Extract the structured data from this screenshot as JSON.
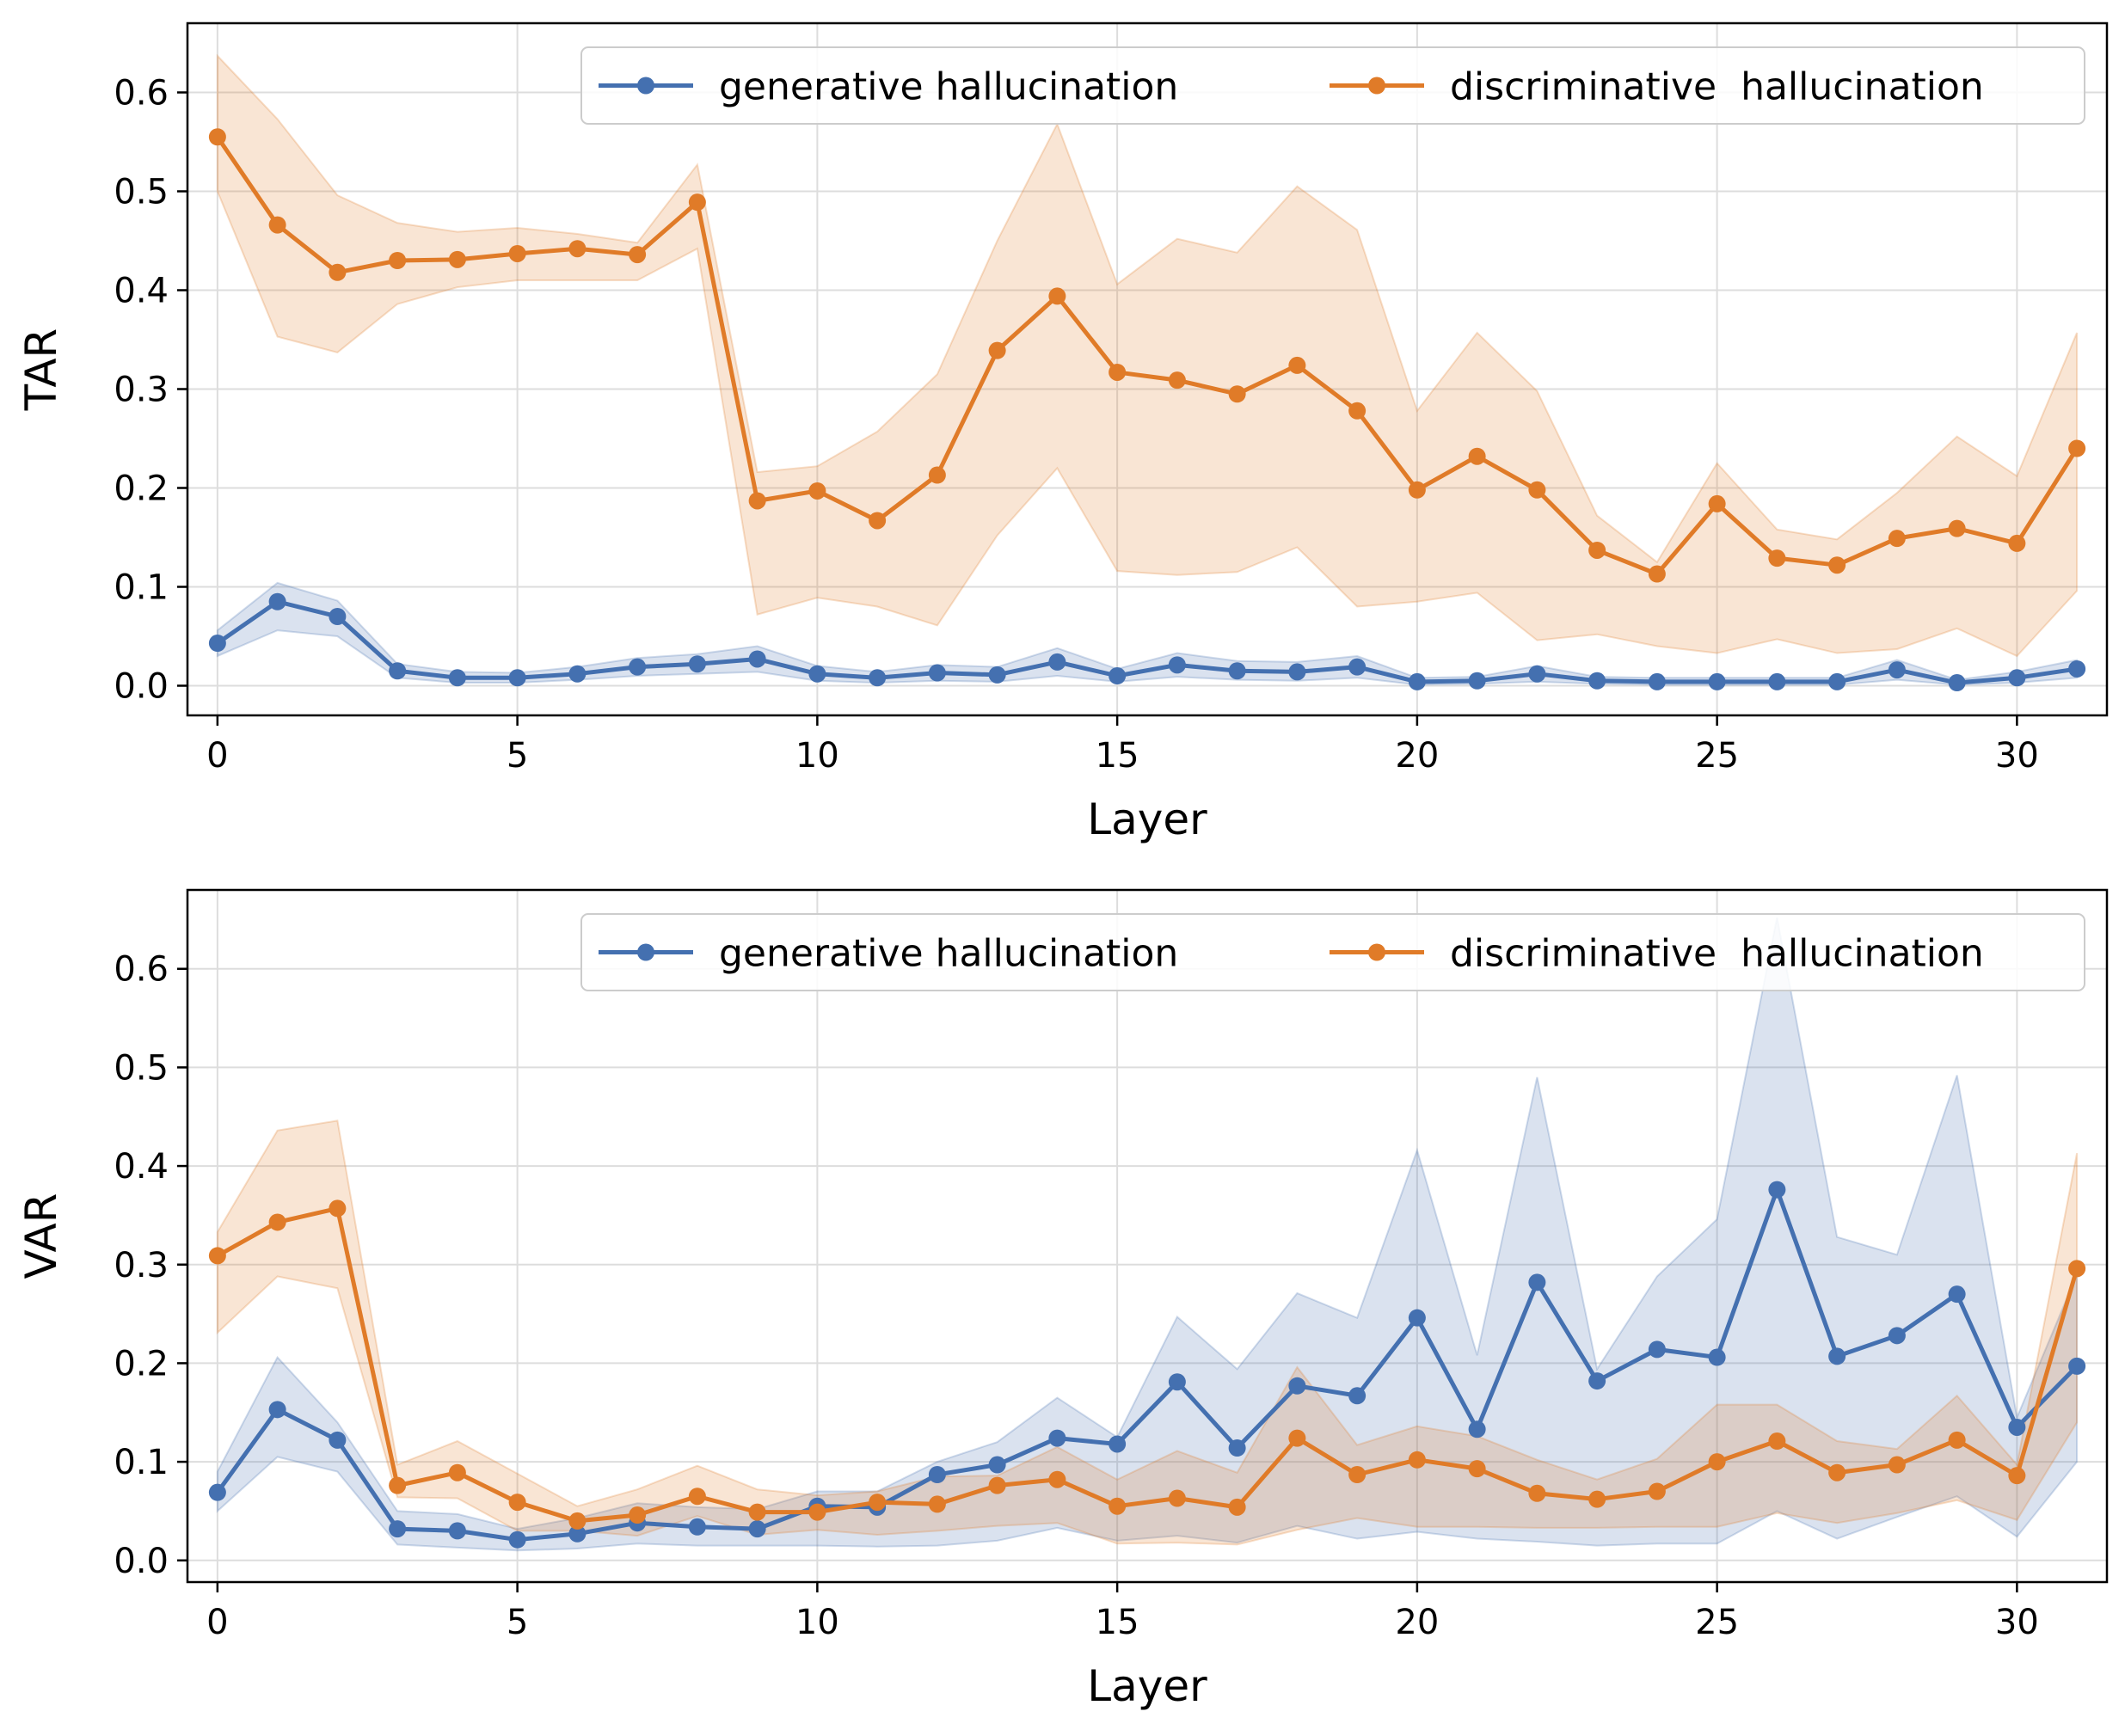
{
  "chart_data": [
    {
      "type": "line",
      "xlabel": "Layer",
      "ylabel": "TAR",
      "xlim": [
        -0.5,
        31.5
      ],
      "ylim": [
        -0.03,
        0.67
      ],
      "xticks": [
        0,
        5,
        10,
        15,
        20,
        25,
        30
      ],
      "yticks": [
        0.0,
        0.1,
        0.2,
        0.3,
        0.4,
        0.5,
        0.6
      ],
      "grid": true,
      "legend_position": "top-right",
      "x": [
        0,
        1,
        2,
        3,
        4,
        5,
        6,
        7,
        8,
        9,
        10,
        11,
        12,
        13,
        14,
        15,
        16,
        17,
        18,
        19,
        20,
        21,
        22,
        23,
        24,
        25,
        26,
        27,
        28,
        29,
        30,
        31
      ],
      "series": [
        {
          "name": "generative hallucination",
          "color": "#4470b0",
          "values": [
            0.043,
            0.085,
            0.07,
            0.015,
            0.008,
            0.008,
            0.012,
            0.019,
            0.022,
            0.027,
            0.012,
            0.008,
            0.013,
            0.011,
            0.024,
            0.01,
            0.021,
            0.015,
            0.014,
            0.019,
            0.004,
            0.005,
            0.012,
            0.005,
            0.004,
            0.004,
            0.004,
            0.004,
            0.016,
            0.003,
            0.008,
            0.017
          ],
          "lower": [
            0.03,
            0.056,
            0.05,
            0.008,
            0.003,
            0.003,
            0.006,
            0.01,
            0.012,
            0.014,
            0.005,
            0.003,
            0.005,
            0.004,
            0.01,
            0.004,
            0.009,
            0.006,
            0.005,
            0.008,
            0.001,
            0.002,
            0.004,
            0.002,
            0.001,
            0.001,
            0.001,
            0.001,
            0.006,
            0.001,
            0.003,
            0.008
          ],
          "upper": [
            0.056,
            0.104,
            0.086,
            0.022,
            0.014,
            0.013,
            0.019,
            0.028,
            0.032,
            0.04,
            0.02,
            0.014,
            0.021,
            0.019,
            0.038,
            0.017,
            0.033,
            0.025,
            0.024,
            0.03,
            0.008,
            0.009,
            0.02,
            0.009,
            0.008,
            0.008,
            0.008,
            0.008,
            0.026,
            0.006,
            0.014,
            0.026
          ]
        },
        {
          "name": "discriminative  hallucination",
          "color": "#e07b28",
          "values": [
            0.555,
            0.466,
            0.418,
            0.43,
            0.431,
            0.437,
            0.442,
            0.436,
            0.489,
            0.187,
            0.197,
            0.167,
            0.213,
            0.339,
            0.394,
            0.317,
            0.309,
            0.295,
            0.324,
            0.278,
            0.198,
            0.232,
            0.198,
            0.137,
            0.113,
            0.184,
            0.129,
            0.122,
            0.149,
            0.159,
            0.144,
            0.24
          ],
          "lower": [
            0.5,
            0.353,
            0.337,
            0.386,
            0.403,
            0.41,
            0.41,
            0.41,
            0.442,
            0.072,
            0.089,
            0.08,
            0.061,
            0.152,
            0.22,
            0.116,
            0.112,
            0.115,
            0.14,
            0.08,
            0.085,
            0.094,
            0.046,
            0.052,
            0.04,
            0.033,
            0.047,
            0.033,
            0.037,
            0.058,
            0.03,
            0.096
          ],
          "upper": [
            0.637,
            0.573,
            0.496,
            0.468,
            0.459,
            0.463,
            0.457,
            0.448,
            0.527,
            0.216,
            0.222,
            0.257,
            0.315,
            0.45,
            0.568,
            0.406,
            0.452,
            0.438,
            0.505,
            0.461,
            0.278,
            0.357,
            0.298,
            0.172,
            0.125,
            0.225,
            0.158,
            0.148,
            0.195,
            0.252,
            0.212,
            0.357
          ]
        }
      ]
    },
    {
      "type": "line",
      "xlabel": "Layer",
      "ylabel": "VAR",
      "xlim": [
        -0.5,
        31.5
      ],
      "ylim": [
        -0.022,
        0.68
      ],
      "xticks": [
        0,
        5,
        10,
        15,
        20,
        25,
        30
      ],
      "yticks": [
        0.0,
        0.1,
        0.2,
        0.3,
        0.4,
        0.5,
        0.6
      ],
      "grid": true,
      "legend_position": "top-right",
      "x": [
        0,
        1,
        2,
        3,
        4,
        5,
        6,
        7,
        8,
        9,
        10,
        11,
        12,
        13,
        14,
        15,
        16,
        17,
        18,
        19,
        20,
        21,
        22,
        23,
        24,
        25,
        26,
        27,
        28,
        29,
        30,
        31
      ],
      "series": [
        {
          "name": "generative hallucination",
          "color": "#4470b0",
          "values": [
            0.069,
            0.153,
            0.122,
            0.032,
            0.03,
            0.021,
            0.027,
            0.038,
            0.034,
            0.032,
            0.055,
            0.054,
            0.087,
            0.097,
            0.124,
            0.118,
            0.181,
            0.114,
            0.177,
            0.167,
            0.246,
            0.133,
            0.282,
            0.182,
            0.214,
            0.206,
            0.376,
            0.207,
            0.228,
            0.27,
            0.135,
            0.197
          ],
          "lower": [
            0.05,
            0.105,
            0.09,
            0.016,
            0.013,
            0.01,
            0.012,
            0.017,
            0.015,
            0.015,
            0.015,
            0.014,
            0.015,
            0.02,
            0.033,
            0.02,
            0.025,
            0.018,
            0.035,
            0.022,
            0.029,
            0.022,
            0.019,
            0.015,
            0.017,
            0.017,
            0.05,
            0.022,
            0.044,
            0.065,
            0.024,
            0.1
          ],
          "upper": [
            0.09,
            0.206,
            0.14,
            0.05,
            0.047,
            0.032,
            0.043,
            0.058,
            0.054,
            0.052,
            0.07,
            0.07,
            0.1,
            0.12,
            0.165,
            0.125,
            0.247,
            0.194,
            0.271,
            0.246,
            0.416,
            0.208,
            0.49,
            0.194,
            0.288,
            0.346,
            0.652,
            0.328,
            0.31,
            0.492,
            0.145,
            0.29
          ]
        },
        {
          "name": "discriminative  hallucination",
          "color": "#e07b28",
          "values": [
            0.309,
            0.343,
            0.357,
            0.076,
            0.089,
            0.059,
            0.04,
            0.046,
            0.065,
            0.049,
            0.049,
            0.059,
            0.057,
            0.076,
            0.082,
            0.055,
            0.063,
            0.054,
            0.124,
            0.087,
            0.102,
            0.093,
            0.068,
            0.062,
            0.07,
            0.1,
            0.121,
            0.089,
            0.097,
            0.122,
            0.086,
            0.296
          ],
          "lower": [
            0.231,
            0.288,
            0.276,
            0.064,
            0.063,
            0.03,
            0.03,
            0.025,
            0.045,
            0.026,
            0.031,
            0.026,
            0.03,
            0.035,
            0.038,
            0.017,
            0.018,
            0.016,
            0.031,
            0.043,
            0.034,
            0.034,
            0.033,
            0.033,
            0.034,
            0.034,
            0.048,
            0.038,
            0.048,
            0.061,
            0.041,
            0.14
          ],
          "upper": [
            0.333,
            0.436,
            0.446,
            0.097,
            0.121,
            0.088,
            0.055,
            0.072,
            0.096,
            0.072,
            0.066,
            0.07,
            0.085,
            0.086,
            0.115,
            0.082,
            0.111,
            0.089,
            0.196,
            0.117,
            0.136,
            0.126,
            0.102,
            0.082,
            0.103,
            0.158,
            0.158,
            0.121,
            0.113,
            0.167,
            0.097,
            0.413
          ]
        }
      ]
    }
  ]
}
